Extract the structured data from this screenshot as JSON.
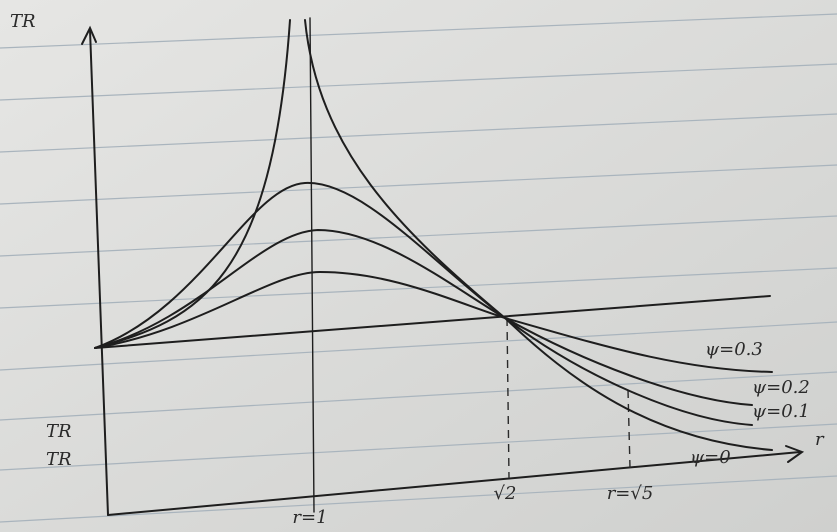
{
  "axes": {
    "y_label": "TR",
    "x_label": "r"
  },
  "x_marks": [
    "r=1",
    "√2",
    "r=√5"
  ],
  "left_labels": [
    "TR",
    "TR"
  ],
  "curves": [
    {
      "label": "ψ=0.3"
    },
    {
      "label": "ψ=0.2"
    },
    {
      "label": "ψ=0.1"
    },
    {
      "label": "ψ=0"
    }
  ]
}
